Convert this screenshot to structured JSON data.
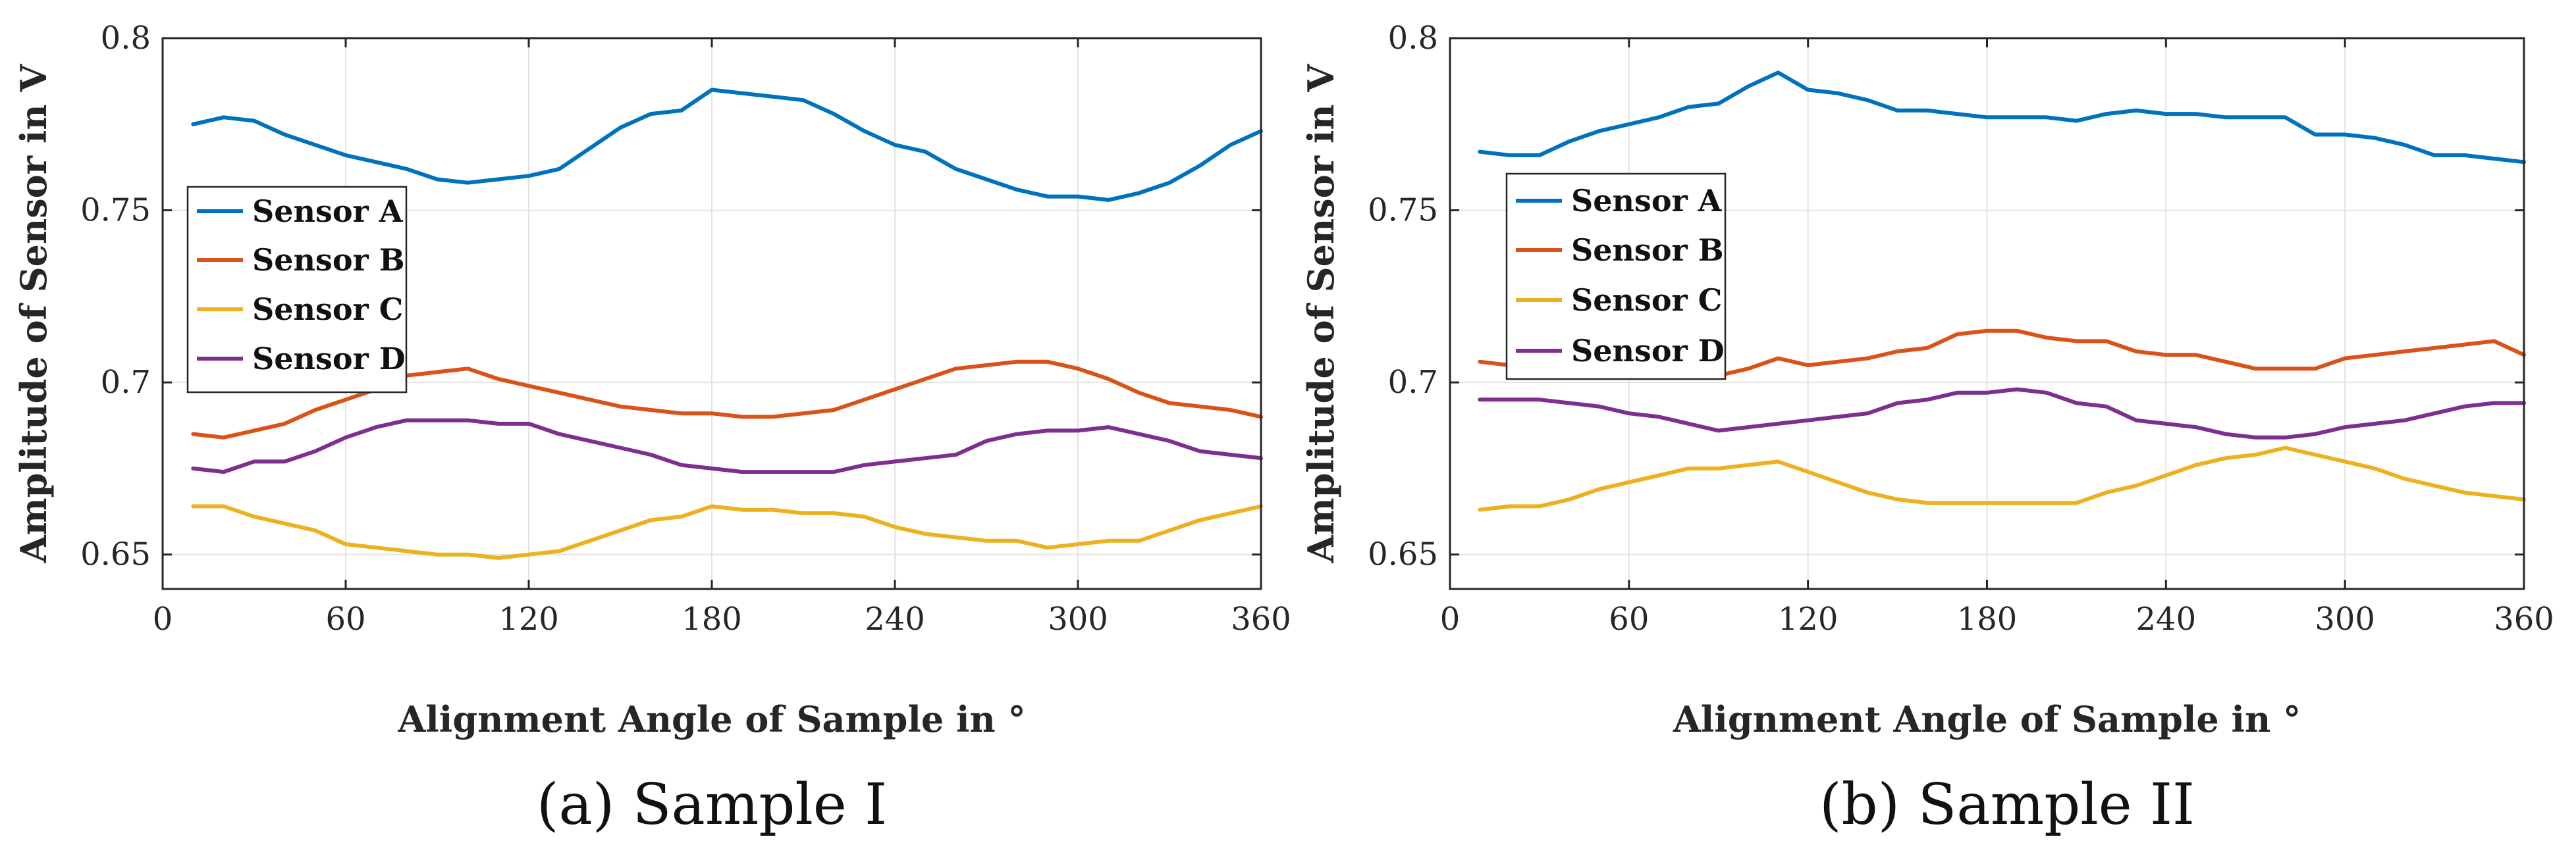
{
  "chart_data": [
    {
      "type": "line",
      "caption": "(a) Sample I",
      "xlabel": "Alignment Angle of Sample in °",
      "ylabel": "Amplitude of Sensor in V",
      "xlim": [
        0,
        360
      ],
      "ylim": [
        0.64,
        0.8
      ],
      "xticks": [
        "0",
        "60",
        "120",
        "180",
        "240",
        "300",
        "360"
      ],
      "yticks": [
        "0.65",
        "0.7",
        "0.75",
        "0.8"
      ],
      "grid": true,
      "legend_position": "left",
      "x": [
        10,
        20,
        30,
        40,
        50,
        60,
        70,
        80,
        90,
        100,
        110,
        120,
        130,
        140,
        150,
        160,
        170,
        180,
        190,
        200,
        210,
        220,
        230,
        240,
        250,
        260,
        270,
        280,
        290,
        300,
        310,
        320,
        330,
        340,
        350,
        360
      ],
      "series": [
        {
          "name": "Sensor A",
          "color": "#0072BD",
          "values": [
            0.775,
            0.777,
            0.776,
            0.772,
            0.769,
            0.766,
            0.764,
            0.762,
            0.759,
            0.758,
            0.759,
            0.76,
            0.762,
            0.768,
            0.774,
            0.778,
            0.779,
            0.785,
            0.784,
            0.783,
            0.782,
            0.778,
            0.773,
            0.769,
            0.767,
            0.762,
            0.759,
            0.756,
            0.754,
            0.754,
            0.753,
            0.755,
            0.758,
            0.763,
            0.769,
            0.773
          ]
        },
        {
          "name": "Sensor B",
          "color": "#D95319",
          "values": [
            0.685,
            0.684,
            0.686,
            0.688,
            0.692,
            0.695,
            0.698,
            0.702,
            0.703,
            0.704,
            0.701,
            0.699,
            0.697,
            0.695,
            0.693,
            0.692,
            0.691,
            0.691,
            0.69,
            0.69,
            0.691,
            0.692,
            0.695,
            0.698,
            0.701,
            0.704,
            0.705,
            0.706,
            0.706,
            0.704,
            0.701,
            0.697,
            0.694,
            0.693,
            0.692,
            0.69
          ]
        },
        {
          "name": "Sensor C",
          "color": "#EDB120",
          "values": [
            0.664,
            0.664,
            0.661,
            0.659,
            0.657,
            0.653,
            0.652,
            0.651,
            0.65,
            0.65,
            0.649,
            0.65,
            0.651,
            0.654,
            0.657,
            0.66,
            0.661,
            0.664,
            0.663,
            0.663,
            0.662,
            0.662,
            0.661,
            0.658,
            0.656,
            0.655,
            0.654,
            0.654,
            0.652,
            0.653,
            0.654,
            0.654,
            0.657,
            0.66,
            0.662,
            0.664
          ]
        },
        {
          "name": "Sensor D",
          "color": "#7E2F8E",
          "values": [
            0.675,
            0.674,
            0.677,
            0.677,
            0.68,
            0.684,
            0.687,
            0.689,
            0.689,
            0.689,
            0.688,
            0.688,
            0.685,
            0.683,
            0.681,
            0.679,
            0.676,
            0.675,
            0.674,
            0.674,
            0.674,
            0.674,
            0.676,
            0.677,
            0.678,
            0.679,
            0.683,
            0.685,
            0.686,
            0.686,
            0.687,
            0.685,
            0.683,
            0.68,
            0.679,
            0.678
          ]
        }
      ]
    },
    {
      "type": "line",
      "caption": "(b) Sample II",
      "xlabel": "Alignment Angle of Sample in °",
      "ylabel": "Amplitude of Sensor in V",
      "xlim": [
        0,
        360
      ],
      "ylim": [
        0.64,
        0.8
      ],
      "xticks": [
        "0",
        "60",
        "120",
        "180",
        "240",
        "300",
        "360"
      ],
      "yticks": [
        "0.65",
        "0.7",
        "0.75",
        "0.8"
      ],
      "grid": true,
      "legend_position": "upper-left",
      "x": [
        10,
        20,
        30,
        40,
        50,
        60,
        70,
        80,
        90,
        100,
        110,
        120,
        130,
        140,
        150,
        160,
        170,
        180,
        190,
        200,
        210,
        220,
        230,
        240,
        250,
        260,
        270,
        280,
        290,
        300,
        310,
        320,
        330,
        340,
        350,
        360
      ],
      "series": [
        {
          "name": "Sensor A",
          "color": "#0072BD",
          "values": [
            0.767,
            0.766,
            0.766,
            0.77,
            0.773,
            0.775,
            0.777,
            0.78,
            0.781,
            0.786,
            0.79,
            0.785,
            0.784,
            0.782,
            0.779,
            0.779,
            0.778,
            0.777,
            0.777,
            0.777,
            0.776,
            0.778,
            0.779,
            0.778,
            0.778,
            0.777,
            0.777,
            0.777,
            0.772,
            0.772,
            0.771,
            0.769,
            0.766,
            0.766,
            0.765,
            0.764
          ]
        },
        {
          "name": "Sensor B",
          "color": "#D95319",
          "values": [
            0.706,
            0.705,
            0.704,
            0.703,
            0.702,
            0.702,
            0.702,
            0.702,
            0.702,
            0.704,
            0.707,
            0.705,
            0.706,
            0.707,
            0.709,
            0.71,
            0.714,
            0.715,
            0.715,
            0.713,
            0.712,
            0.712,
            0.709,
            0.708,
            0.708,
            0.706,
            0.704,
            0.704,
            0.704,
            0.707,
            0.708,
            0.709,
            0.71,
            0.711,
            0.712,
            0.708
          ]
        },
        {
          "name": "Sensor C",
          "color": "#EDB120",
          "values": [
            0.663,
            0.664,
            0.664,
            0.666,
            0.669,
            0.671,
            0.673,
            0.675,
            0.675,
            0.676,
            0.677,
            0.674,
            0.671,
            0.668,
            0.666,
            0.665,
            0.665,
            0.665,
            0.665,
            0.665,
            0.665,
            0.668,
            0.67,
            0.673,
            0.676,
            0.678,
            0.679,
            0.681,
            0.679,
            0.677,
            0.675,
            0.672,
            0.67,
            0.668,
            0.667,
            0.666
          ]
        },
        {
          "name": "Sensor D",
          "color": "#7E2F8E",
          "values": [
            0.695,
            0.695,
            0.695,
            0.694,
            0.693,
            0.691,
            0.69,
            0.688,
            0.686,
            0.687,
            0.688,
            0.689,
            0.69,
            0.691,
            0.694,
            0.695,
            0.697,
            0.697,
            0.698,
            0.697,
            0.694,
            0.693,
            0.689,
            0.688,
            0.687,
            0.685,
            0.684,
            0.684,
            0.685,
            0.687,
            0.688,
            0.689,
            0.691,
            0.693,
            0.694,
            0.694
          ]
        }
      ]
    }
  ]
}
